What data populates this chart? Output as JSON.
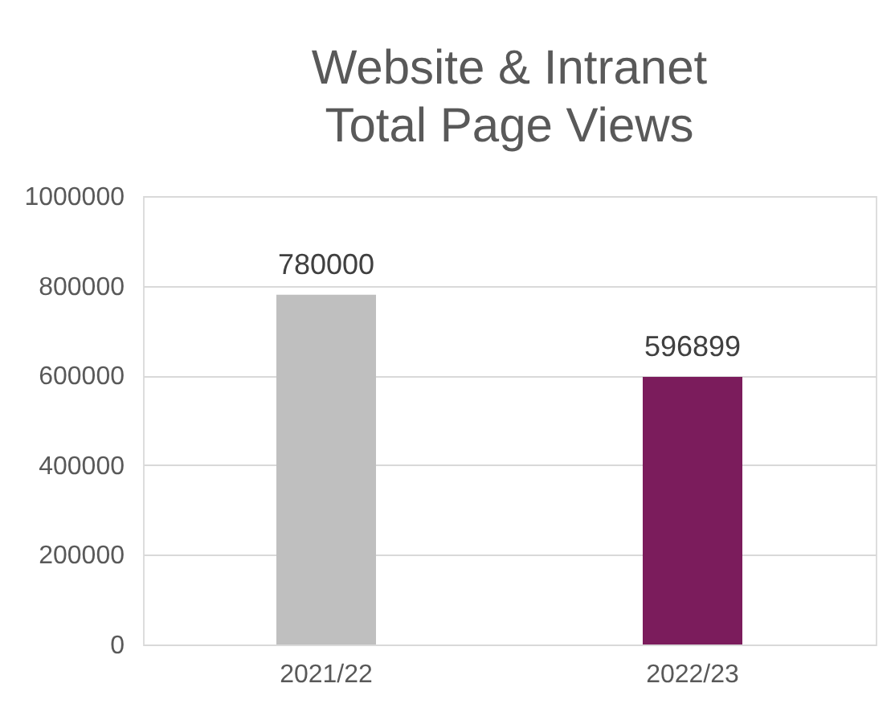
{
  "chart_data": {
    "type": "bar",
    "title": "Website & Intranet Total Page Views",
    "categories": [
      "2021/22",
      "2022/23"
    ],
    "values": [
      780000,
      596899
    ],
    "colors": [
      "#bfbfbf",
      "#7b1c5c"
    ],
    "ylim": [
      0,
      1000000
    ],
    "yticks": [
      0,
      200000,
      400000,
      600000,
      800000,
      1000000
    ],
    "grid": "y",
    "data_labels": true
  }
}
